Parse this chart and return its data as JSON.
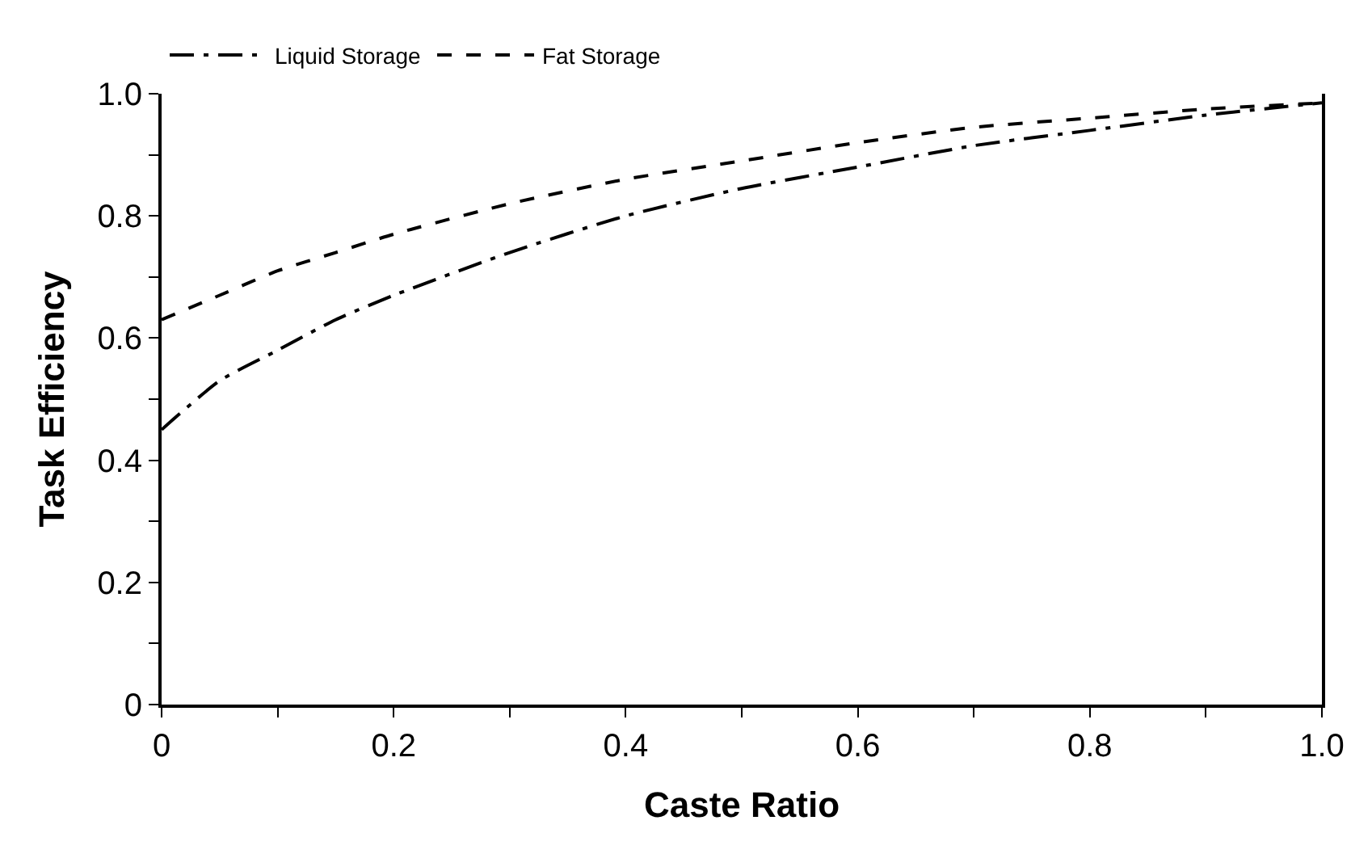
{
  "chart_data": {
    "type": "line",
    "xlabel": "Caste Ratio",
    "ylabel": "Task Efficiency",
    "xlim": [
      0,
      1
    ],
    "ylim": [
      0,
      1
    ],
    "xticks": [
      0,
      {
        "value": 0.1,
        "label": null
      },
      0.2,
      {
        "value": 0.3,
        "label": null
      },
      0.4,
      {
        "value": 0.5,
        "label": null
      },
      0.6,
      {
        "value": 0.7,
        "label": null
      },
      0.8,
      {
        "value": 0.9,
        "label": null
      },
      {
        "value": 1,
        "label": "1.0"
      }
    ],
    "yticks": [
      0,
      {
        "value": 0.1,
        "label": null
      },
      0.2,
      {
        "value": 0.3,
        "label": null
      },
      0.4,
      {
        "value": 0.5,
        "label": null
      },
      0.6,
      {
        "value": 0.7,
        "label": null
      },
      0.8,
      {
        "value": 0.9,
        "label": null
      },
      {
        "value": 1,
        "label": "1.0"
      }
    ],
    "x": [
      0,
      0.05,
      0.1,
      0.15,
      0.2,
      0.3,
      0.4,
      0.5,
      0.6,
      0.7,
      0.8,
      0.9,
      1.0
    ],
    "series": [
      {
        "name": "Liquid Storage",
        "color": "#000000",
        "line_style": "dashdot",
        "values": [
          0.45,
          0.53,
          0.58,
          0.63,
          0.67,
          0.74,
          0.8,
          0.845,
          0.88,
          0.915,
          0.94,
          0.965,
          0.985
        ]
      },
      {
        "name": "Fat Storage",
        "color": "#000000",
        "line_style": "dashed",
        "values": [
          0.63,
          0.67,
          0.71,
          0.74,
          0.77,
          0.82,
          0.86,
          0.89,
          0.92,
          0.945,
          0.96,
          0.975,
          0.985
        ]
      }
    ],
    "grid": false,
    "legend": "top left",
    "marker": "none"
  }
}
